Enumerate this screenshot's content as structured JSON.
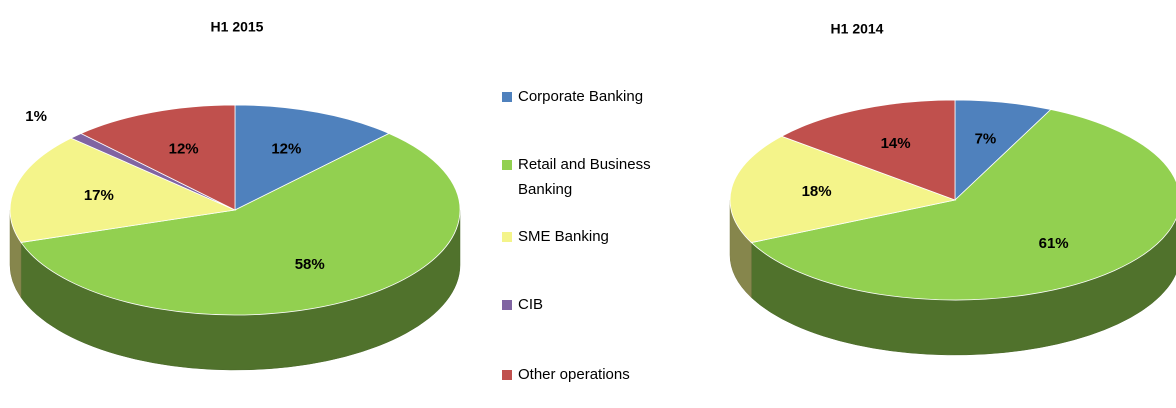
{
  "chart_data": [
    {
      "type": "pie3d",
      "title": "H1 2015",
      "values": [
        12,
        58,
        17,
        1,
        12
      ],
      "value_labels": [
        "12%",
        "58%",
        "17%",
        "1%",
        "12%"
      ]
    },
    {
      "type": "pie3d",
      "title": "H1 2014",
      "values": [
        7,
        61,
        18,
        0,
        14
      ],
      "value_labels": [
        "7%",
        "61%",
        "18%",
        null,
        "14%"
      ]
    }
  ],
  "legend": {
    "categories": [
      "Corporate Banking",
      "Retail and Business Banking",
      "SME Banking",
      "CIB",
      "Other operations"
    ],
    "colors": [
      "#4f81bd",
      "#92d050",
      "#f4f48a",
      "#8064a2",
      "#c0504d"
    ]
  }
}
